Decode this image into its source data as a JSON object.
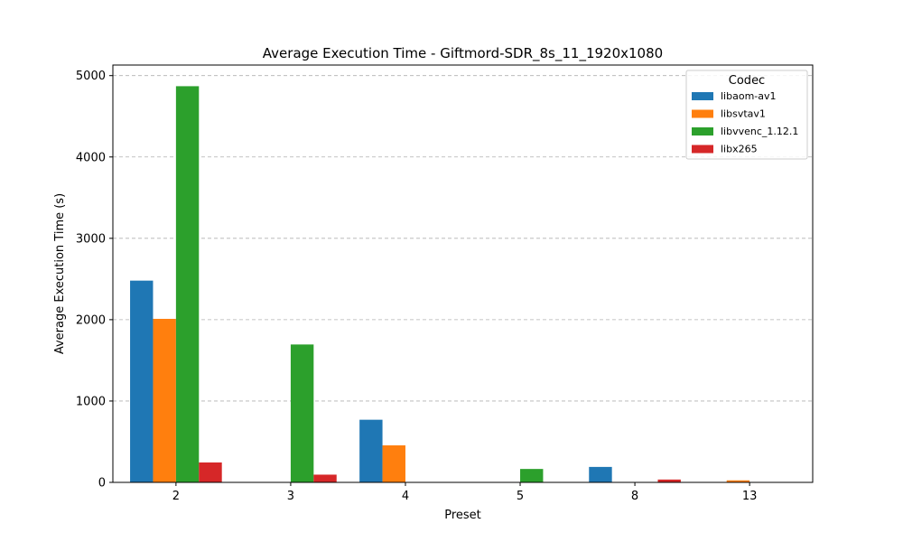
{
  "chart_data": {
    "type": "bar",
    "title": "Average Execution Time - Giftmord-SDR_8s_11_1920x1080",
    "xlabel": "Preset",
    "ylabel": "Average Execution Time (s)",
    "categories": [
      "2",
      "3",
      "4",
      "5",
      "8",
      "13"
    ],
    "ylim": [
      0,
      5130
    ],
    "yticks": [
      0,
      1000,
      2000,
      3000,
      4000,
      5000
    ],
    "grid": "y-dashed",
    "legend": {
      "title": "Codec",
      "placement": "top-right"
    },
    "series": [
      {
        "name": "libaom-av1",
        "color": "#1f77b4",
        "values": [
          2480,
          null,
          770,
          null,
          190,
          null
        ]
      },
      {
        "name": "libsvtav1",
        "color": "#ff7f0e",
        "values": [
          2010,
          null,
          455,
          null,
          null,
          25
        ]
      },
      {
        "name": "libvvenc_1.12.1",
        "color": "#2ca02c",
        "values": [
          4870,
          1695,
          null,
          165,
          null,
          null
        ]
      },
      {
        "name": "libx265",
        "color": "#d62728",
        "values": [
          245,
          95,
          null,
          null,
          35,
          null
        ]
      }
    ]
  }
}
